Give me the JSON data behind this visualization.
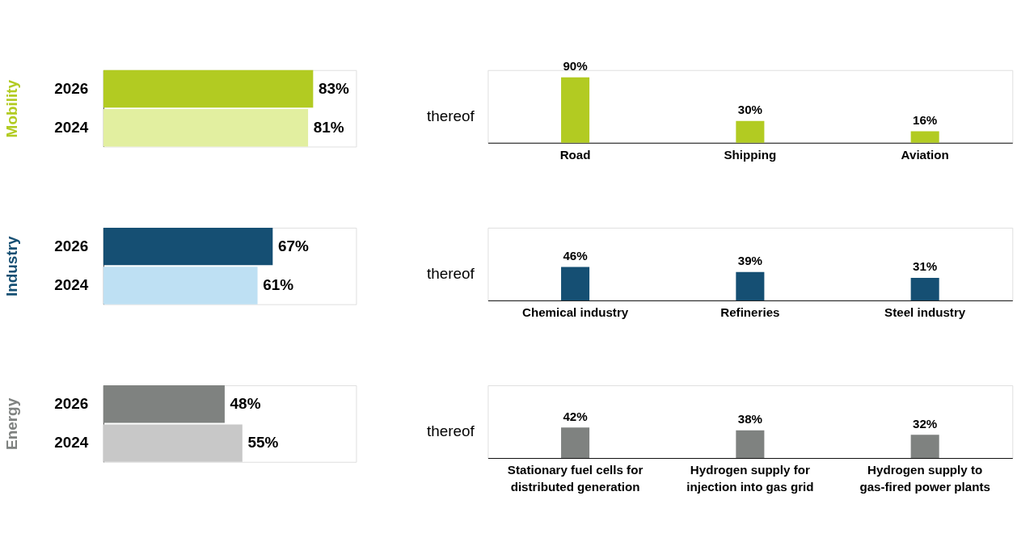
{
  "chart_data": [
    {
      "type": "bar",
      "orientation": "horizontal",
      "ylabel": "Mobility",
      "categories": [
        "2026",
        "2024"
      ],
      "values": [
        83,
        81
      ],
      "colors": [
        "#b2cb22",
        "#e2efa0"
      ],
      "value_labels": [
        "83%",
        "81%"
      ],
      "xlim": [
        0,
        100
      ]
    },
    {
      "type": "bar",
      "annotations": [
        "thereof"
      ],
      "categories": [
        "Road",
        "Shipping",
        "Aviation"
      ],
      "values": [
        90,
        30,
        16
      ],
      "colors": [
        "#b2cb22",
        "#b2cb22",
        "#b2cb22"
      ],
      "value_labels": [
        "90%",
        "30%",
        "16%"
      ],
      "ylim": [
        0,
        100
      ]
    },
    {
      "type": "bar",
      "orientation": "horizontal",
      "ylabel": "Industry",
      "categories": [
        "2026",
        "2024"
      ],
      "values": [
        67,
        61
      ],
      "colors": [
        "#154f73",
        "#bee0f3"
      ],
      "value_labels": [
        "67%",
        "61%"
      ],
      "xlim": [
        0,
        100
      ]
    },
    {
      "type": "bar",
      "annotations": [
        "thereof"
      ],
      "categories": [
        "Chemical industry",
        "Refineries",
        "Steel industry"
      ],
      "values": [
        46,
        39,
        31
      ],
      "colors": [
        "#154f73",
        "#154f73",
        "#154f73"
      ],
      "value_labels": [
        "46%",
        "39%",
        "31%"
      ],
      "ylim": [
        0,
        100
      ]
    },
    {
      "type": "bar",
      "orientation": "horizontal",
      "ylabel": "Energy",
      "categories": [
        "2026",
        "2024"
      ],
      "values": [
        48,
        55
      ],
      "colors": [
        "#7f8280",
        "#c8c8c8"
      ],
      "value_labels": [
        "48%",
        "55%"
      ],
      "xlim": [
        0,
        100
      ]
    },
    {
      "type": "bar",
      "annotations": [
        "thereof"
      ],
      "categories": [
        "Stationary fuel cells for\ndistributed generation",
        "Hydrogen supply for\ninjection into gas grid",
        "Hydrogen supply to\ngas-fired power plants"
      ],
      "values": [
        42,
        38,
        32
      ],
      "colors": [
        "#7f8280",
        "#7f8280",
        "#7f8280"
      ],
      "value_labels": [
        "42%",
        "38%",
        "32%"
      ],
      "ylim": [
        0,
        100
      ]
    }
  ]
}
